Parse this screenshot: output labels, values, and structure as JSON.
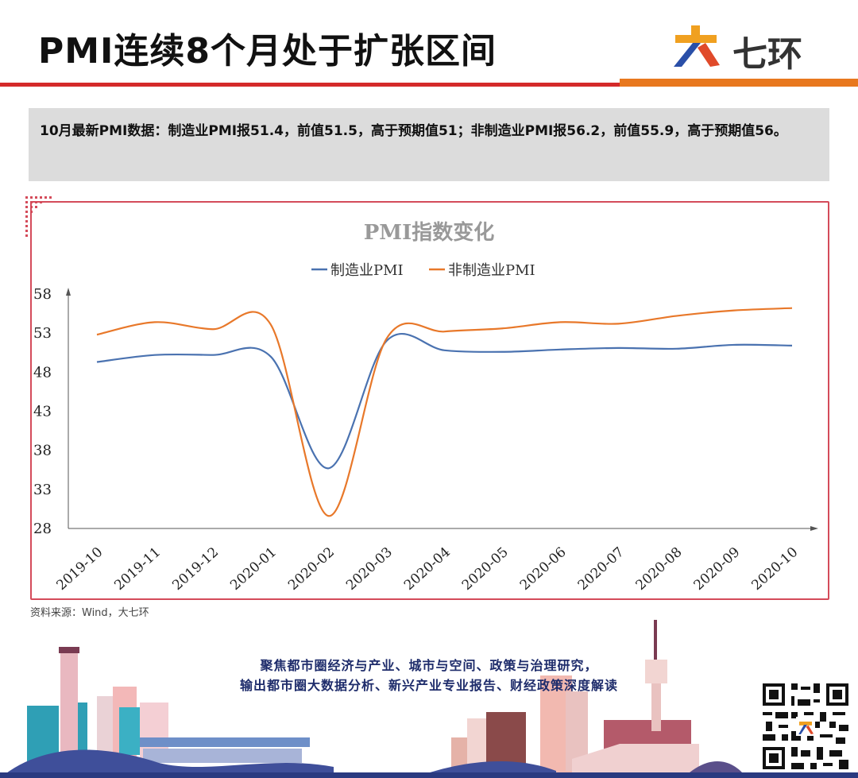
{
  "header": {
    "title": "PMI连续8个月处于扩张区间",
    "logo_text": "七环"
  },
  "summary": {
    "text": "10月最新PMI数据：制造业PMI报51.4，前值51.5，高于预期值51；非制造业PMI报56.2，前值55.9，高于预期值56。"
  },
  "chart_data": {
    "type": "line",
    "title": "PMI指数变化",
    "categories": [
      "2019-10",
      "2019-11",
      "2019-12",
      "2020-01",
      "2020-02",
      "2020-03",
      "2020-04",
      "2020-05",
      "2020-06",
      "2020-07",
      "2020-08",
      "2020-09",
      "2020-10"
    ],
    "series": [
      {
        "name": "制造业PMI",
        "color": "#4a72b0",
        "values": [
          49.3,
          50.2,
          50.2,
          50.0,
          35.7,
          52.0,
          50.8,
          50.6,
          50.9,
          51.1,
          51.0,
          51.5,
          51.4
        ]
      },
      {
        "name": "非制造业PMI",
        "color": "#e8782a",
        "values": [
          52.8,
          54.4,
          53.5,
          54.1,
          29.6,
          52.3,
          53.2,
          53.6,
          54.4,
          54.2,
          55.2,
          55.9,
          56.2
        ]
      }
    ],
    "yticks": [
      58,
      53,
      48,
      43,
      38,
      33,
      28
    ],
    "ylim": [
      28,
      58
    ],
    "grid": false,
    "legend": "top-center"
  },
  "source": "资料来源：Wind，大七环",
  "footer": {
    "slogan_line1": "聚焦都市圈经济与产业、城市与空间、政策与治理研究，",
    "slogan_line2": "输出都市圈大数据分析、新兴产业专业报告、财经政策深度解读"
  }
}
